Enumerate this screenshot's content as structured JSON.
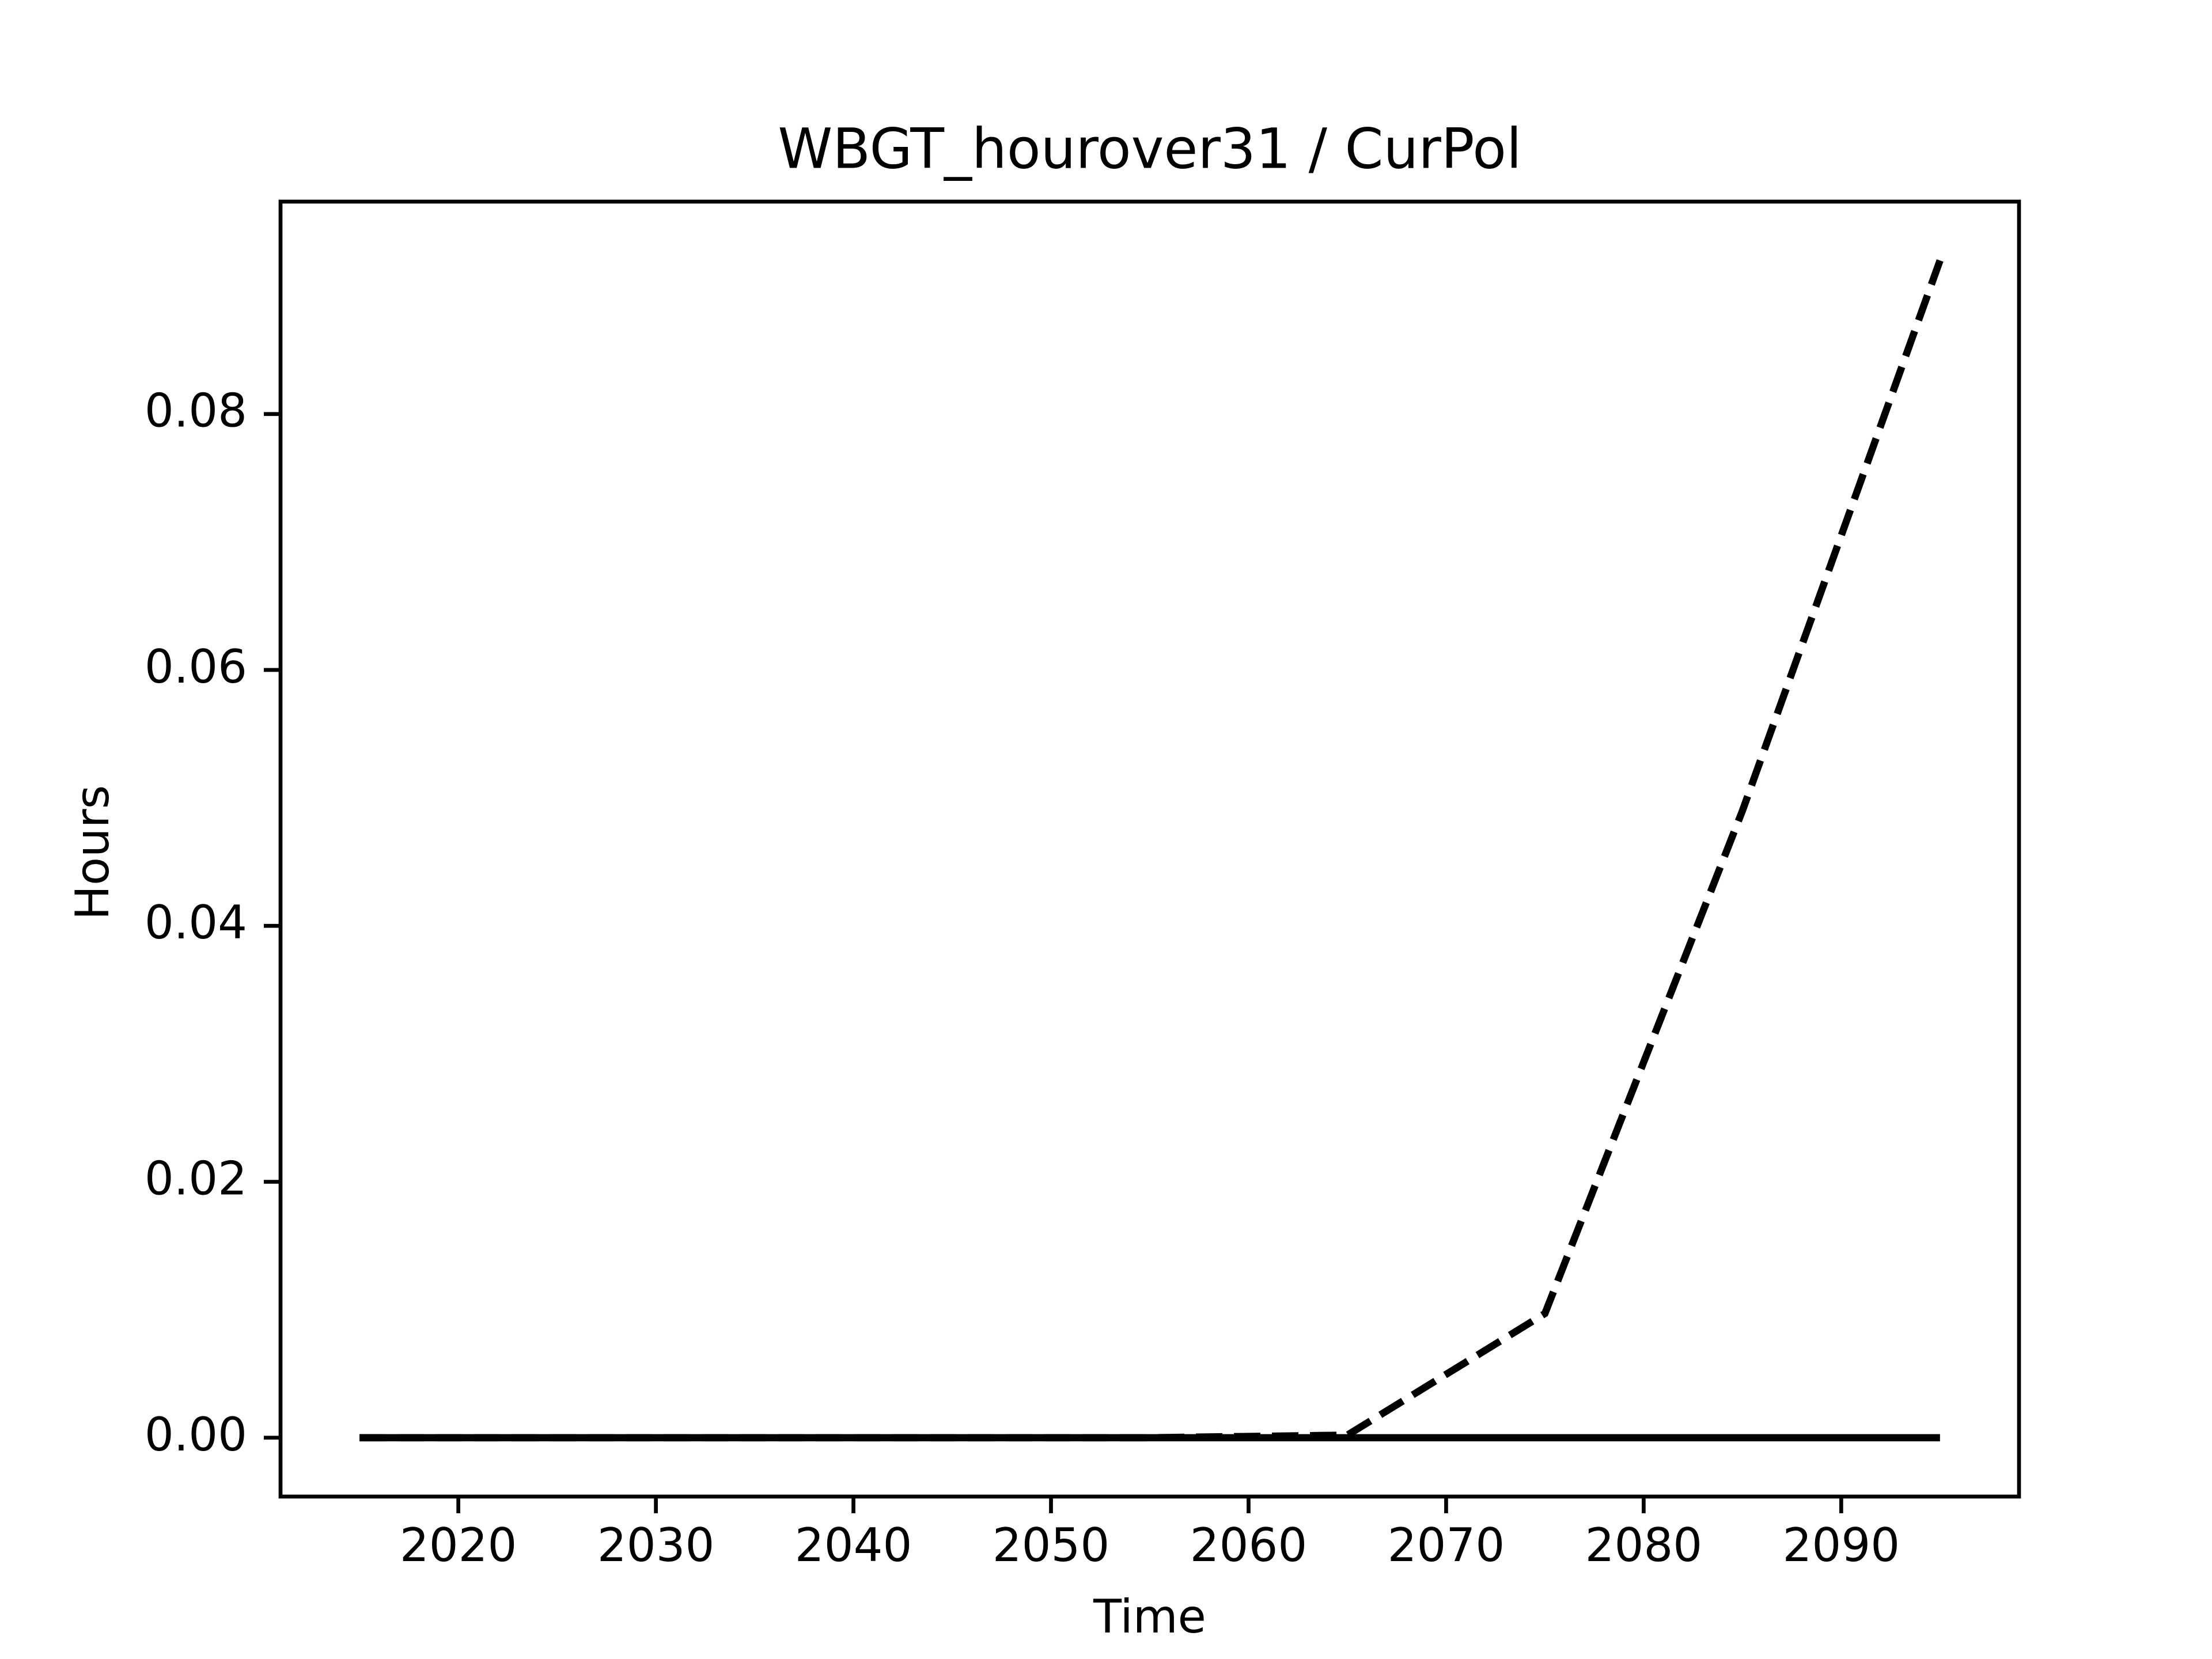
{
  "chart_data": {
    "type": "line",
    "title": "WBGT_hourover31 / CurPol",
    "x_label": "Time",
    "y_label": "Hours",
    "x": [
      2015,
      2025,
      2035,
      2045,
      2055,
      2065,
      2075,
      2085,
      2095
    ],
    "series": [
      {
        "color": "#000000",
        "style": "dashed",
        "values": [
          0,
          0,
          0,
          0,
          0,
          0.0002,
          0.0097,
          0.049,
          0.092
        ]
      },
      {
        "color": "#000000",
        "style": "solid",
        "values": [
          0,
          0,
          0,
          0,
          0,
          0,
          0,
          0,
          0
        ]
      }
    ],
    "xlim": [
      2011,
      2099
    ],
    "xticks": [
      2020,
      2030,
      2040,
      2050,
      2060,
      2070,
      2080,
      2090
    ],
    "ylim": [
      -0.0046,
      0.0966
    ],
    "yticks": [
      {
        "value": 0,
        "label": "0.00"
      },
      {
        "value": 0.02,
        "label": "0.02"
      },
      {
        "value": 0.04,
        "label": "0.04"
      },
      {
        "value": 0.06,
        "label": "0.06"
      },
      {
        "value": 0.08,
        "label": "0.08"
      }
    ],
    "grid": false
  }
}
